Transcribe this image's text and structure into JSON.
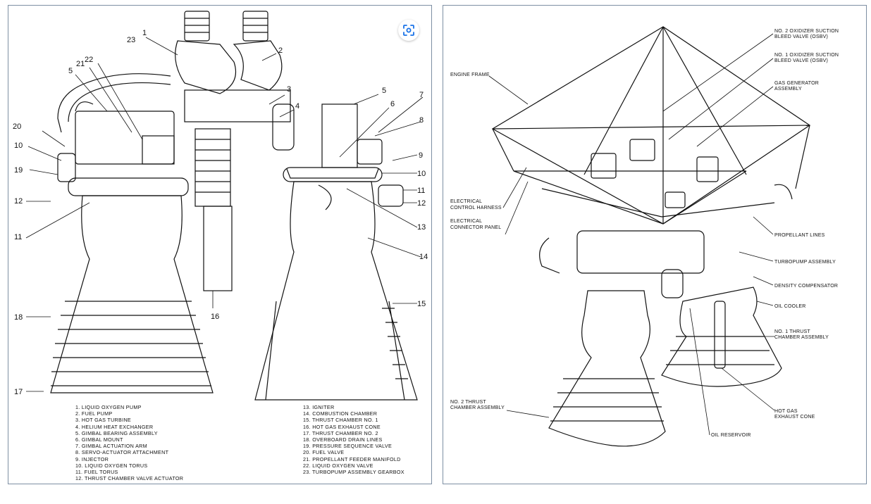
{
  "left_image": {
    "callouts": [
      "1",
      "2",
      "3",
      "4",
      "5",
      "6",
      "7",
      "8",
      "9",
      "10",
      "11",
      "12",
      "13",
      "14",
      "15",
      "16",
      "17",
      "18",
      "19",
      "20",
      "21",
      "22",
      "23"
    ],
    "legend_left": [
      "1. LIQUID OXYGEN PUMP",
      "2. FUEL PUMP",
      "3. HOT GAS TURBINE",
      "4. HELIUM HEAT EXCHANGER",
      "5. GIMBAL BEARING ASSEMBLY",
      "6. GIMBAL MOUNT",
      "7. GIMBAL ACTUATION ARM",
      "8. SERVO-ACTUATOR ATTACHMENT",
      "9. INJECTOR",
      "10. LIQUID OXYGEN TORUS",
      "11. FUEL TORUS",
      "12. THRUST CHAMBER VALVE ACTUATOR"
    ],
    "legend_right": [
      "13. IGNITER",
      "14. COMBUSTION CHAMBER",
      "15. THRUST CHAMBER NO. 1",
      "16. HOT GAS EXHAUST CONE",
      "17. THRUST CHAMBER NO. 2",
      "18. OVERBOARD DRAIN LINES",
      "19. PRESSURE SEQUENCE VALVE",
      "20. FUEL VALVE",
      "21. PROPELLANT FEEDER MANIFOLD",
      "22. LIQUID OXYGEN VALVE",
      "23. TURBOPUMP ASSEMBLY GEARBOX"
    ]
  },
  "right_image": {
    "labels": {
      "ox_bleed_2": [
        "NO. 2 OXIDIZER SUCTION",
        "BLEED VALVE (OSBV)"
      ],
      "ox_bleed_1": [
        "NO. 1 OXIDIZER SUCTION",
        "BLEED VALVE (OSBV)"
      ],
      "gas_gen": [
        "GAS GENERATOR",
        "ASSEMBLY"
      ],
      "engine_frame": [
        "ENGINE FRAME"
      ],
      "harness": [
        "ELECTRICAL",
        "CONTROL HARNESS"
      ],
      "conn_panel": [
        "ELECTRICAL",
        "CONNECTOR PANEL"
      ],
      "prop_lines": [
        "PROPELLANT LINES"
      ],
      "turbopump": [
        "TURBOPUMP ASSEMBLY"
      ],
      "density": [
        "DENSITY COMPENSATOR"
      ],
      "oil_cooler": [
        "OIL COOLER"
      ],
      "thrust1": [
        "NO. 1 THRUST",
        "CHAMBER ASSEMBLY"
      ],
      "thrust2": [
        "NO. 2 THRUST",
        "CHAMBER ASSEMBLY"
      ],
      "hot_gas": [
        "HOT GAS",
        "EXHAUST CONE"
      ],
      "oil_res": [
        "OIL RESERVOIR"
      ]
    }
  },
  "lens_icon": "camera-lens-icon",
  "colors": {
    "panel_border": "#7d8fa3",
    "ink": "#111111"
  }
}
